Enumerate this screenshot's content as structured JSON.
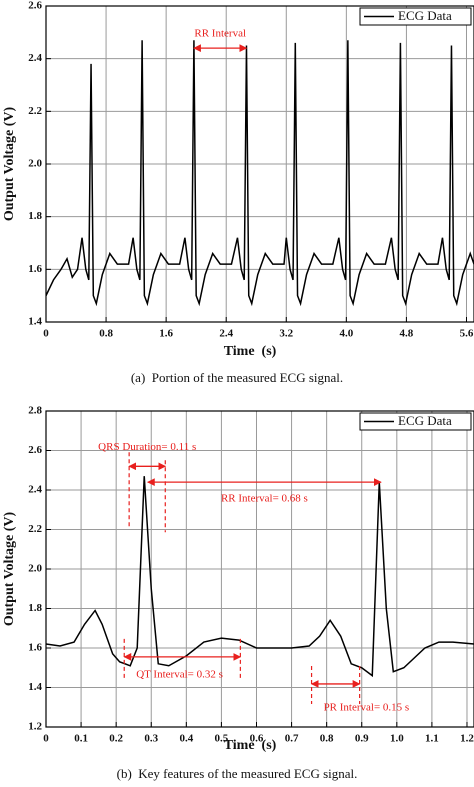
{
  "chart_data": [
    {
      "type": "line",
      "x_label": "Time  (s)",
      "y_label": "Output Voltage (V)",
      "caption": "(a)  Portion of the measured ECG signal.",
      "x": [
        0,
        0.1,
        0.2,
        0.28,
        0.35,
        0.42,
        0.48,
        0.53,
        0.57,
        0.6,
        0.63,
        0.67,
        0.75,
        0.85,
        0.95,
        1.1,
        1.16,
        1.21,
        1.25,
        1.28,
        1.31,
        1.35,
        1.43,
        1.53,
        1.63,
        1.78,
        1.85,
        1.9,
        1.94,
        1.97,
        2.0,
        2.04,
        2.12,
        2.22,
        2.32,
        2.47,
        2.55,
        2.6,
        2.64,
        2.67,
        2.7,
        2.74,
        2.82,
        2.92,
        3.02,
        3.17,
        3.2,
        3.25,
        3.29,
        3.32,
        3.35,
        3.39,
        3.47,
        3.57,
        3.67,
        3.82,
        3.9,
        3.95,
        3.99,
        4.02,
        4.05,
        4.09,
        4.17,
        4.27,
        4.37,
        4.52,
        4.6,
        4.65,
        4.69,
        4.72,
        4.75,
        4.79,
        4.87,
        4.97,
        5.07,
        5.22,
        5.28,
        5.33,
        5.37,
        5.4,
        5.43,
        5.47,
        5.55,
        5.65,
        5.7
      ],
      "series": [
        {
          "name": "ECG Data",
          "color": "#000000",
          "values": [
            1.5,
            1.56,
            1.6,
            1.64,
            1.57,
            1.6,
            1.72,
            1.6,
            1.56,
            2.38,
            1.5,
            1.47,
            1.58,
            1.66,
            1.62,
            1.62,
            1.72,
            1.6,
            1.56,
            2.47,
            1.5,
            1.47,
            1.58,
            1.66,
            1.62,
            1.62,
            1.72,
            1.6,
            1.56,
            2.47,
            1.5,
            1.47,
            1.58,
            1.66,
            1.62,
            1.62,
            1.72,
            1.6,
            1.56,
            2.45,
            1.5,
            1.47,
            1.58,
            1.66,
            1.62,
            1.62,
            1.72,
            1.6,
            1.56,
            2.46,
            1.5,
            1.47,
            1.58,
            1.66,
            1.62,
            1.62,
            1.72,
            1.6,
            1.56,
            2.47,
            1.5,
            1.47,
            1.58,
            1.66,
            1.62,
            1.62,
            1.72,
            1.6,
            1.56,
            2.46,
            1.5,
            1.47,
            1.58,
            1.66,
            1.62,
            1.62,
            1.72,
            1.6,
            1.56,
            2.45,
            1.5,
            1.47,
            1.58,
            1.66,
            1.62
          ]
        }
      ],
      "xlim": [
        0,
        5.7
      ],
      "ylim": [
        1.4,
        2.6
      ],
      "xticks": [
        0,
        0.8,
        1.6,
        2.4,
        3.2,
        {
          "value": 4,
          "label": "4.0"
        },
        4.8,
        5.6
      ],
      "yticks": [
        1.4,
        1.6,
        1.8,
        {
          "value": 2,
          "label": "2.0"
        },
        2.2,
        2.4,
        2.6
      ],
      "grid": true,
      "legend": "upper right",
      "annotation_color": "#e8201e",
      "annotations": [
        {
          "text": "RR Interval",
          "x1": 1.97,
          "x2": 2.67,
          "y": 2.44
        }
      ]
    },
    {
      "type": "line",
      "x_label": "Time  (s)",
      "y_label": "Output Voltage (V)",
      "caption": "(b)  Key features of the measured ECG signal.",
      "x": [
        0,
        0.04,
        0.08,
        0.11,
        0.14,
        0.16,
        0.19,
        0.21,
        0.24,
        0.26,
        0.28,
        0.3,
        0.32,
        0.35,
        0.4,
        0.45,
        0.5,
        0.55,
        0.6,
        0.65,
        0.7,
        0.75,
        0.78,
        0.81,
        0.84,
        0.87,
        0.9,
        0.93,
        0.95,
        0.97,
        0.99,
        1.02,
        1.05,
        1.08,
        1.12,
        1.16,
        1.22
      ],
      "series": [
        {
          "name": "ECG Data",
          "color": "#000000",
          "values": [
            1.62,
            1.61,
            1.63,
            1.72,
            1.79,
            1.72,
            1.57,
            1.53,
            1.51,
            1.6,
            2.47,
            1.9,
            1.52,
            1.51,
            1.56,
            1.63,
            1.65,
            1.64,
            1.6,
            1.6,
            1.6,
            1.61,
            1.66,
            1.74,
            1.66,
            1.52,
            1.5,
            1.46,
            2.44,
            1.8,
            1.48,
            1.5,
            1.55,
            1.6,
            1.63,
            1.63,
            1.62
          ]
        }
      ],
      "xlim": [
        0,
        1.22
      ],
      "ylim": [
        1.2,
        2.8
      ],
      "xticks": [
        0,
        0.1,
        0.2,
        0.3,
        0.4,
        0.5,
        0.6,
        0.7,
        0.8,
        0.9,
        {
          "value": 1,
          "label": "1.0"
        },
        1.1,
        {
          "value": 1.2,
          "label": "1.2"
        }
      ],
      "yticks": [
        1.2,
        1.4,
        1.6,
        1.8,
        {
          "value": 2,
          "label": "2.0"
        },
        2.2,
        2.4,
        2.6,
        2.8
      ],
      "grid": true,
      "legend": "upper right",
      "annotation_color": "#e8201e",
      "annotations": [
        {
          "text": "QRS Duration= 0.11 s",
          "x1": 0.237,
          "x2": 0.34,
          "y": 2.52
        },
        {
          "text": "RR Interval= 0.68 s",
          "x1": 0.29,
          "x2": 0.955,
          "y": 2.44
        },
        {
          "text": "QT Interval= 0.32 s",
          "x1": 0.223,
          "x2": 0.554,
          "y": 1.555
        },
        {
          "text": "PR Interval= 0.15 s",
          "x1": 0.757,
          "x2": 0.894,
          "y": 1.418
        }
      ]
    }
  ]
}
